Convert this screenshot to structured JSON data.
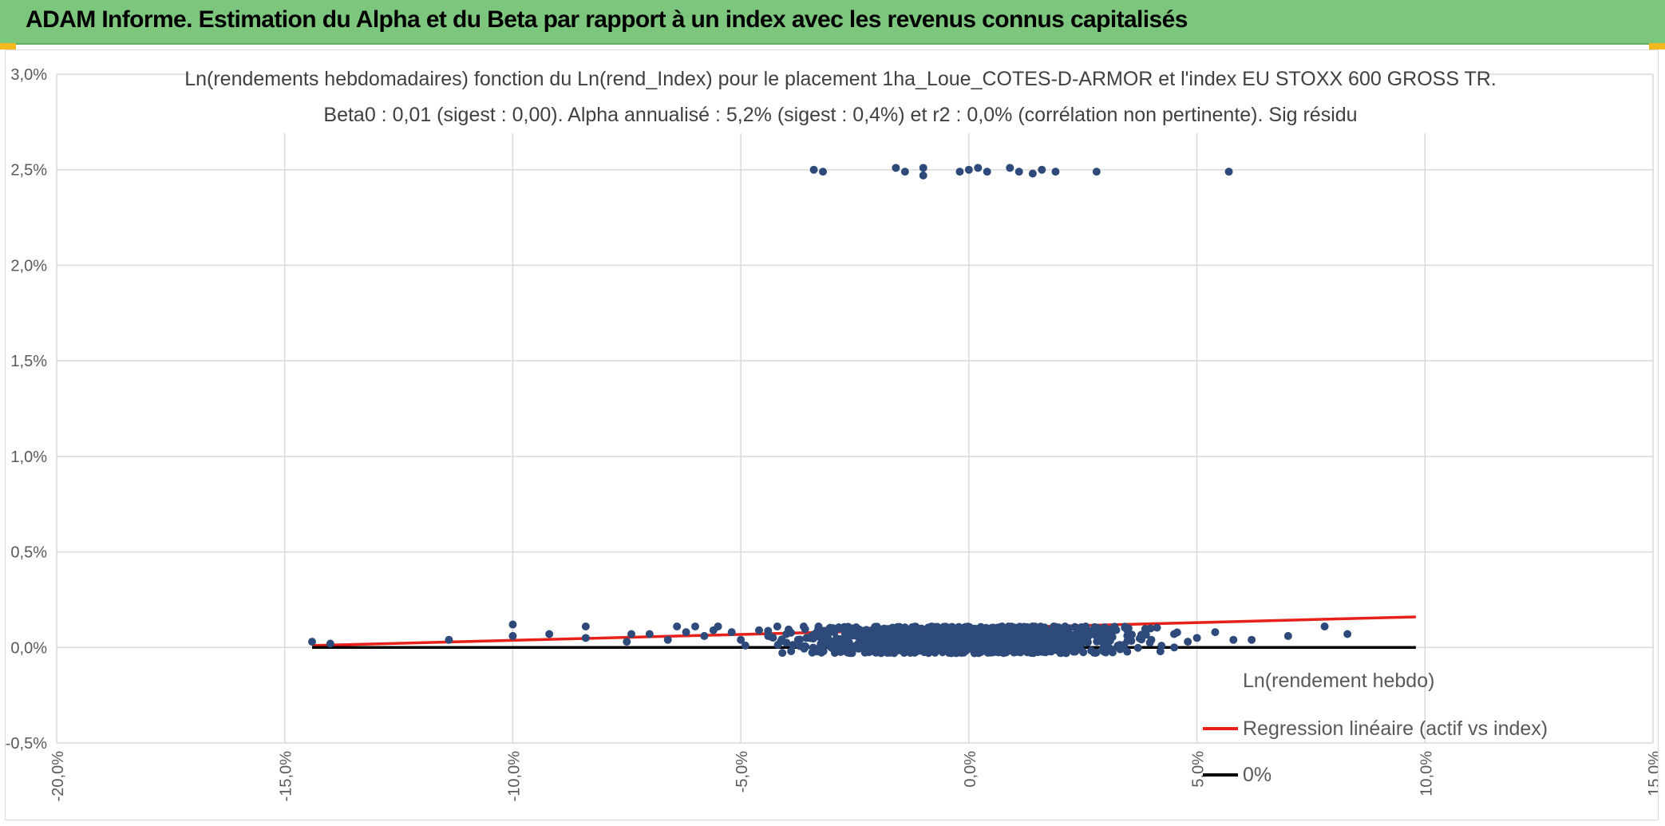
{
  "banner": {
    "title": "ADAM Informe. Estimation du Alpha et du Beta par rapport à un index avec les revenus connus capitalisés"
  },
  "colors": {
    "banner_bg": "#7dc67d",
    "points": "#2e4a7a",
    "regression": "#e8201a",
    "zero_line": "#000000",
    "grid": "#d9d9d9"
  },
  "chart_data": {
    "type": "scatter",
    "title": "Ln(rendements hebdomadaires) fonction du Ln(rend_Index) pour le placement 1ha_Loue_COTES-D-ARMOR et l'index EU STOXX 600 GROSS TR.",
    "subtitle": "Beta0 : 0,01 (sigest : 0,00). Alpha annualisé : 5,2% (sigest : 0,4%) et r2 : 0,0% (corrélation non pertinente). Sig résidu",
    "xlim": [
      -0.2,
      0.15
    ],
    "ylim": [
      -0.005,
      0.03
    ],
    "x_ticks": [
      "-20,0%",
      "-15,0%",
      "-10,0%",
      "-5,0%",
      "0,0%",
      "5,0%",
      "10,0%",
      "15,0%"
    ],
    "y_ticks": [
      "-0,5%",
      "0,0%",
      "0,5%",
      "1,0%",
      "1,5%",
      "2,0%",
      "2,5%",
      "3,0%"
    ],
    "grid": true,
    "legend_position": "right",
    "series": [
      {
        "name": "Ln(rendement hebdo)",
        "kind": "scatter",
        "points": [
          [
            -0.144,
            0.0003
          ],
          [
            -0.14,
            0.0002
          ],
          [
            -0.114,
            0.0004
          ],
          [
            -0.1,
            0.0012
          ],
          [
            -0.1,
            0.0006
          ],
          [
            -0.092,
            0.0007
          ],
          [
            -0.084,
            0.0011
          ],
          [
            -0.084,
            0.0005
          ],
          [
            -0.075,
            0.0003
          ],
          [
            -0.074,
            0.0007
          ],
          [
            -0.07,
            0.0007
          ],
          [
            -0.066,
            0.0004
          ],
          [
            -0.064,
            0.0011
          ],
          [
            -0.062,
            0.0008
          ],
          [
            -0.06,
            0.0011
          ],
          [
            -0.058,
            0.0006
          ],
          [
            -0.056,
            0.0009
          ],
          [
            -0.055,
            0.0011
          ],
          [
            -0.052,
            0.0008
          ],
          [
            -0.05,
            0.0004
          ],
          [
            -0.049,
            0.0001
          ],
          [
            -0.046,
            0.0009
          ],
          [
            -0.044,
            0.0006
          ],
          [
            -0.042,
            0.0011
          ],
          [
            -0.04,
            0.0007
          ],
          [
            -0.034,
            0.025
          ],
          [
            -0.032,
            0.0249
          ],
          [
            -0.016,
            0.0251
          ],
          [
            -0.014,
            0.0249
          ],
          [
            -0.01,
            0.0251
          ],
          [
            -0.01,
            0.0247
          ],
          [
            -0.002,
            0.0249
          ],
          [
            0.0,
            0.025
          ],
          [
            0.002,
            0.0251
          ],
          [
            0.004,
            0.0249
          ],
          [
            0.009,
            0.0251
          ],
          [
            0.011,
            0.0249
          ],
          [
            0.014,
            0.0248
          ],
          [
            0.016,
            0.025
          ],
          [
            0.019,
            0.0249
          ],
          [
            0.028,
            0.0249
          ],
          [
            0.057,
            0.0249
          ],
          [
            0.03,
            0.0006
          ],
          [
            0.035,
            0.001
          ],
          [
            0.04,
            0.0004
          ],
          [
            0.042,
            -0.0002
          ],
          [
            0.045,
            0.0007
          ],
          [
            0.048,
            0.0003
          ],
          [
            0.05,
            0.0005
          ],
          [
            0.054,
            0.0008
          ],
          [
            0.058,
            0.0004
          ],
          [
            0.062,
            0.0004
          ],
          [
            0.07,
            0.0006
          ],
          [
            0.078,
            0.0011
          ],
          [
            0.083,
            0.0007
          ]
        ]
      },
      {
        "name": "Regression linéaire (actif vs index)",
        "kind": "line",
        "points": [
          [
            -0.144,
            0.0001
          ],
          [
            0.098,
            0.0016
          ]
        ]
      },
      {
        "name": "0%",
        "kind": "line",
        "points": [
          [
            -0.144,
            0.0
          ],
          [
            0.098,
            0.0
          ]
        ]
      }
    ]
  }
}
